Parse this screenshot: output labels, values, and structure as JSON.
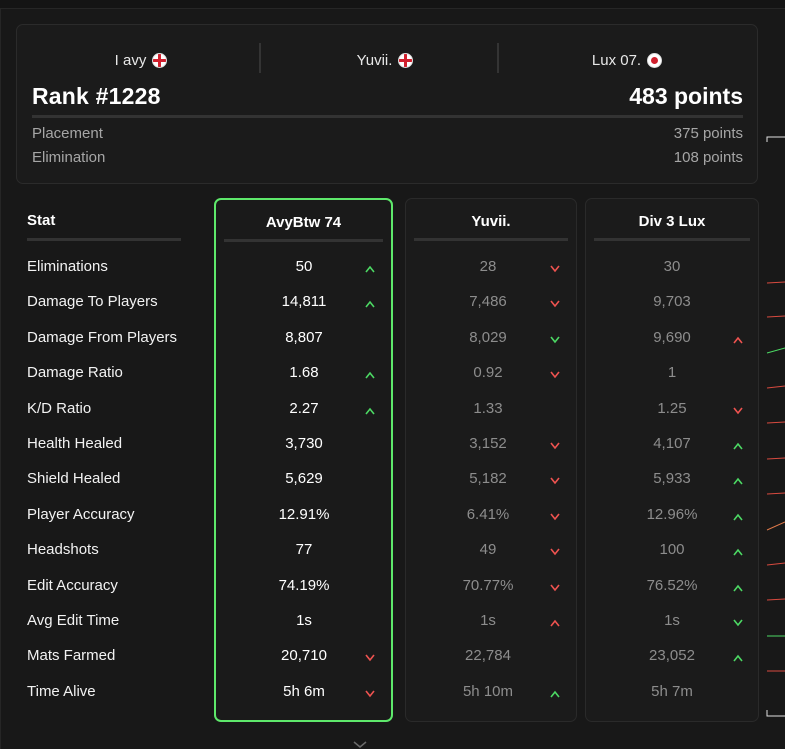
{
  "summary": {
    "players": [
      {
        "name": "I avy",
        "flag": "england-flag-icon"
      },
      {
        "name": "Yuvii.",
        "flag": "england-flag-icon"
      },
      {
        "name": "Lux 07.",
        "flag": "japan-flag-icon"
      }
    ],
    "rank": "Rank #1228",
    "total_points": "483 points",
    "breakdown": [
      {
        "label": "Placement",
        "value": "375 points"
      },
      {
        "label": "Elimination",
        "value": "108 points"
      }
    ]
  },
  "table": {
    "stat_header": "Stat",
    "stats": [
      "Eliminations",
      "Damage To Players",
      "Damage From Players",
      "Damage Ratio",
      "K/D Ratio",
      "Health Healed",
      "Shield Healed",
      "Player Accuracy",
      "Headshots",
      "Edit Accuracy",
      "Avg Edit Time",
      "Mats Farmed",
      "Time Alive"
    ],
    "columns": [
      {
        "name": "AvyBtw 74",
        "highlight": true,
        "values": [
          "50",
          "14,811",
          "8,807",
          "1.68",
          "2.27",
          "3,730",
          "5,629",
          "12.91%",
          "77",
          "74.19%",
          "1s",
          "20,710",
          "5h 6m"
        ],
        "trends": [
          "up",
          "up",
          "",
          "up",
          "up",
          "",
          "",
          "",
          "",
          "",
          "",
          "down",
          "down"
        ]
      },
      {
        "name": "Yuvii.",
        "highlight": false,
        "values": [
          "28",
          "7,486",
          "8,029",
          "0.92",
          "1.33",
          "3,152",
          "5,182",
          "6.41%",
          "49",
          "70.77%",
          "1s",
          "22,784",
          "5h 10m"
        ],
        "trends": [
          "down",
          "down",
          "down",
          "down",
          "",
          "down",
          "down",
          "down",
          "down",
          "down",
          "up",
          "",
          "up"
        ]
      },
      {
        "name": "Div 3 Lux",
        "highlight": false,
        "values": [
          "30",
          "9,703",
          "9,690",
          "1",
          "1.25",
          "4,107",
          "5,933",
          "12.96%",
          "100",
          "76.52%",
          "1s",
          "23,052",
          "5h 7m"
        ],
        "trends": [
          "",
          "",
          "up",
          "",
          "down",
          "up",
          "up",
          "up",
          "up",
          "up",
          "down",
          "up",
          ""
        ]
      }
    ]
  },
  "colors": {
    "highlight_border": "#5ee86b",
    "trend_up_good": "#4cd964",
    "trend_down_bad": "#ef5350",
    "trend_down_good": "#4cd964",
    "trend_up_bad": "#ef5350"
  }
}
